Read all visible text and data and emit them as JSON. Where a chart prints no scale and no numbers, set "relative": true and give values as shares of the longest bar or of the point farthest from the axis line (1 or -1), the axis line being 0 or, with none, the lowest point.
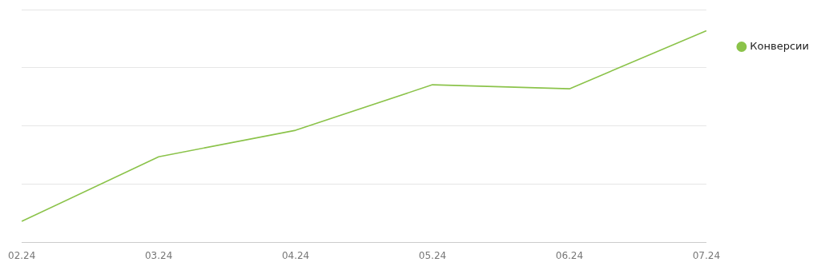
{
  "chart_data": {
    "type": "line",
    "relative": true,
    "grid": "y",
    "legend": "top right",
    "marker": "none",
    "line_style": "solid",
    "categories": [
      "02.24",
      "03.24",
      "04.24",
      "05.24",
      "06.24",
      "07.24"
    ],
    "series": [
      {
        "name": "Конверсии",
        "color": "#8bc34a",
        "values": [
          0.1,
          0.405,
          0.53,
          0.745,
          0.726,
          1
        ]
      }
    ]
  }
}
